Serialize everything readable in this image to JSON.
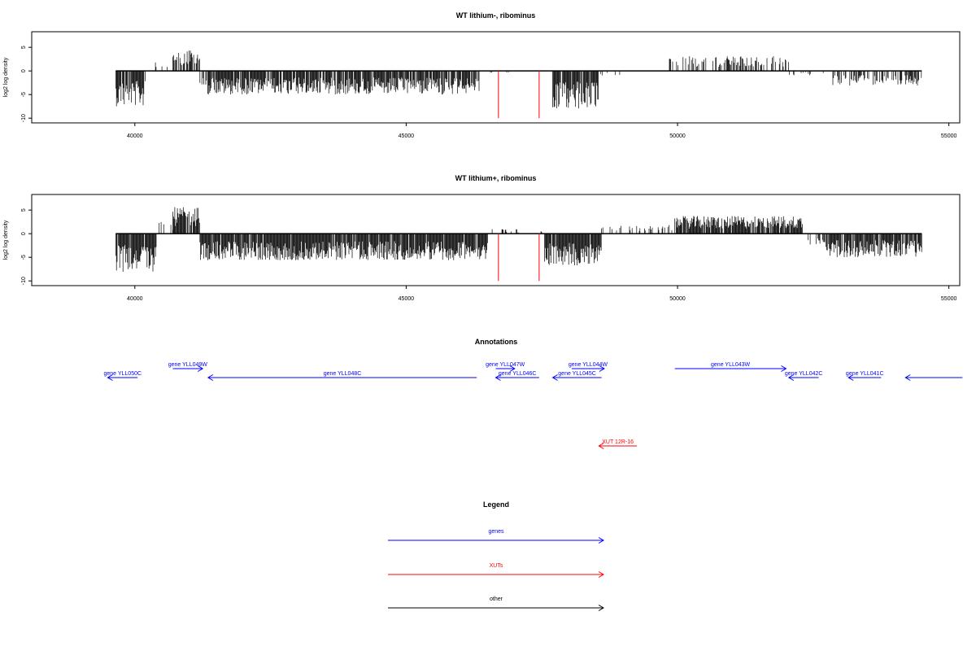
{
  "chart_data": [
    {
      "type": "bar",
      "title": "WT lithium-, ribominus",
      "ylabel": "log2 log density",
      "xlabel": "",
      "xlim": [
        38100,
        55200
      ],
      "ylim": [
        -11,
        8.3
      ],
      "x_ticks": [
        "40000",
        "45000",
        "50000",
        "55000"
      ],
      "y_ticks": [
        "-10",
        "-5",
        "0",
        "5"
      ],
      "marker_lines": [
        46700,
        47450
      ],
      "segments": [
        {
          "x0": 39650,
          "x1": 40200,
          "y": -6,
          "density": 0.85
        },
        {
          "x0": 40200,
          "x1": 40700,
          "y": 1.5,
          "density": 0.12
        },
        {
          "x0": 40700,
          "x1": 41200,
          "y": 3.5,
          "density": 0.6
        },
        {
          "x0": 41200,
          "x1": 46350,
          "y": -4,
          "density": 0.85
        },
        {
          "x0": 46350,
          "x1": 47700,
          "y": -0.3,
          "density": 0.04
        },
        {
          "x0": 47700,
          "x1": 48550,
          "y": -6.5,
          "density": 0.9
        },
        {
          "x0": 48550,
          "x1": 49850,
          "y": -0.8,
          "density": 0.05
        },
        {
          "x0": 49850,
          "x1": 52050,
          "y": 2.5,
          "density": 0.4
        },
        {
          "x0": 52050,
          "x1": 52850,
          "y": -0.8,
          "density": 0.12
        },
        {
          "x0": 52850,
          "x1": 54500,
          "y": -2.5,
          "density": 0.55
        }
      ]
    },
    {
      "type": "bar",
      "title": "WT lithium+, ribominus",
      "ylabel": "log2 log density",
      "xlabel": "",
      "xlim": [
        38100,
        55200
      ],
      "ylim": [
        -11,
        8.3
      ],
      "x_ticks": [
        "40000",
        "45000",
        "50000",
        "55000"
      ],
      "y_ticks": [
        "-10",
        "-5",
        "0",
        "5"
      ],
      "marker_lines": [
        46700,
        47450
      ],
      "segments": [
        {
          "x0": 39650,
          "x1": 40400,
          "y": -6.5,
          "density": 0.9
        },
        {
          "x0": 40400,
          "x1": 40700,
          "y": 2,
          "density": 0.25
        },
        {
          "x0": 40700,
          "x1": 41200,
          "y": 4.5,
          "density": 0.9
        },
        {
          "x0": 41200,
          "x1": 46500,
          "y": -4.5,
          "density": 0.95
        },
        {
          "x0": 46500,
          "x1": 47550,
          "y": 0.8,
          "density": 0.1
        },
        {
          "x0": 47550,
          "x1": 48600,
          "y": -5.5,
          "density": 0.95
        },
        {
          "x0": 48600,
          "x1": 49950,
          "y": 1.5,
          "density": 0.25
        },
        {
          "x0": 49950,
          "x1": 52300,
          "y": 3,
          "density": 0.9
        },
        {
          "x0": 52300,
          "x1": 52700,
          "y": -2,
          "density": 0.2
        },
        {
          "x0": 52700,
          "x1": 54500,
          "y": -4,
          "density": 0.9
        }
      ]
    }
  ],
  "annotations": {
    "title": "Annotations",
    "genes": [
      {
        "label": "gene YLL050C",
        "x0": 40050,
        "x1": 39500,
        "row": 0
      },
      {
        "label": "gene YLL049W",
        "x0": 40700,
        "x1": 41250,
        "row": 1
      },
      {
        "label": "gene YLL048C",
        "x0": 46300,
        "x1": 41350,
        "row": 0
      },
      {
        "label": "gene YLL047W",
        "x0": 46650,
        "x1": 47000,
        "row": 1
      },
      {
        "label": "gene YLL046C",
        "x0": 47450,
        "x1": 46650,
        "row": 0
      },
      {
        "label": "gene YLL044W",
        "x0": 48050,
        "x1": 48650,
        "row": 1
      },
      {
        "label": "gene YLL045C",
        "x0": 48600,
        "x1": 47700,
        "row": 0
      },
      {
        "label": "gene YLL043W",
        "x0": 49950,
        "x1": 52000,
        "row": 1
      },
      {
        "label": "gene YLL042C",
        "x0": 52600,
        "x1": 52050,
        "row": 0
      },
      {
        "label": "gene YLL041C",
        "x0": 53750,
        "x1": 53150,
        "row": 0
      },
      {
        "label": "",
        "x0": 55250,
        "x1": 54200,
        "row": 0
      }
    ],
    "xuts": [
      {
        "label": "XUT 12R-16",
        "x0": 49250,
        "x1": 48550,
        "row": 0
      }
    ]
  },
  "legend": {
    "title": "Legend",
    "items": [
      {
        "label": "genes",
        "color": "#0000ff"
      },
      {
        "label": "XUTs",
        "color": "#ff0000"
      },
      {
        "label": "other",
        "color": "#000000"
      }
    ]
  },
  "colors": {
    "gene": "#0000ff",
    "xut": "#ff0000",
    "other": "#000000",
    "marker": "#ff0000"
  }
}
